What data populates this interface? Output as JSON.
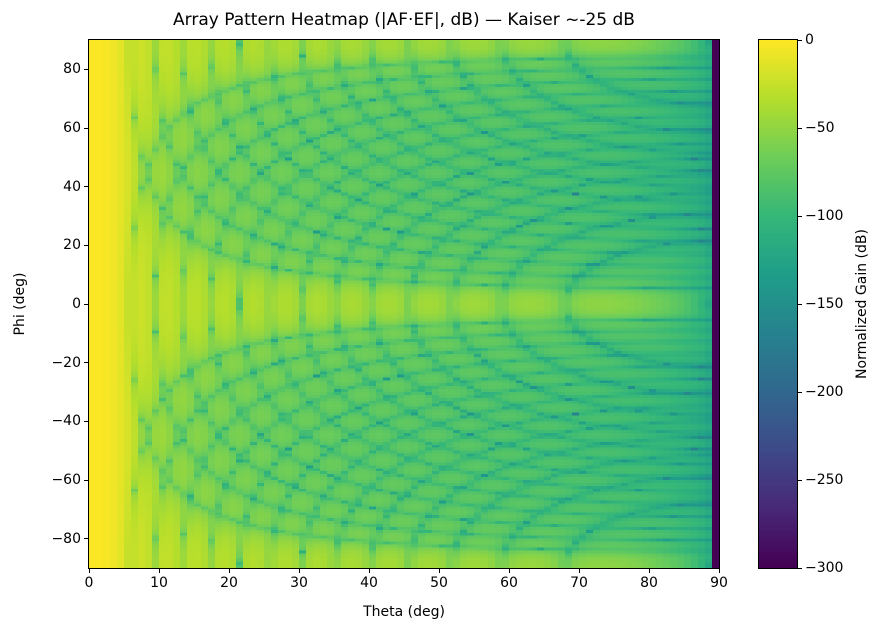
{
  "chart_data": {
    "type": "heatmap",
    "title": "Array Pattern Heatmap (|AF·EF|, dB) — Kaiser ~-25 dB",
    "xlabel": "Theta (deg)",
    "ylabel": "Phi (deg)",
    "xlim": [
      0,
      90
    ],
    "ylim": [
      -90,
      90
    ],
    "xticks": [
      0,
      10,
      20,
      30,
      40,
      50,
      60,
      70,
      80,
      90
    ],
    "yticks": [
      -80,
      -60,
      -40,
      -20,
      0,
      20,
      40,
      60,
      80
    ],
    "colormap": "viridis",
    "colorbar": {
      "label": "Normalized Gain (dB)",
      "clim": [
        -300,
        0
      ],
      "ticks": [
        0,
        -50,
        -100,
        -150,
        -200,
        -250,
        -300
      ],
      "tick_labels": [
        "0",
        "−50",
        "−100",
        "−150",
        "−200",
        "−250",
        "−300"
      ]
    },
    "sample_grid": {
      "theta": [
        0,
        10,
        20,
        30,
        40,
        50,
        60,
        70,
        80,
        90
      ],
      "phi": [
        90,
        60,
        30,
        0,
        -30,
        -60,
        -90
      ],
      "values": [
        [
          0,
          -25,
          -35,
          -45,
          -50,
          -55,
          -55,
          -60,
          -65,
          -300
        ],
        [
          0,
          -30,
          -50,
          -55,
          -60,
          -65,
          -70,
          -75,
          -80,
          -300
        ],
        [
          0,
          -28,
          -50,
          -55,
          -55,
          -60,
          -65,
          -70,
          -75,
          -300
        ],
        [
          0,
          -20,
          -30,
          -35,
          -40,
          -45,
          -45,
          -50,
          -60,
          -300
        ],
        [
          0,
          -28,
          -50,
          -55,
          -55,
          -60,
          -65,
          -70,
          -75,
          -300
        ],
        [
          0,
          -30,
          -50,
          -55,
          -60,
          -65,
          -70,
          -75,
          -80,
          -300
        ],
        [
          0,
          -25,
          -35,
          -45,
          -50,
          -55,
          -55,
          -60,
          -65,
          -300
        ]
      ]
    }
  }
}
